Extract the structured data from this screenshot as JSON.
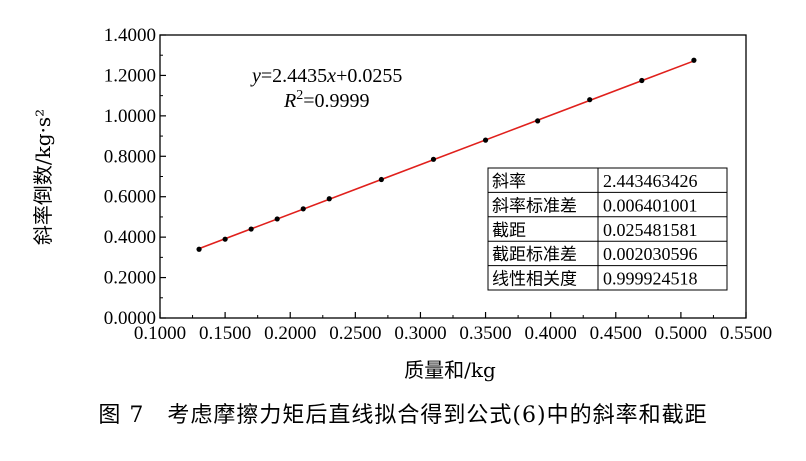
{
  "caption": "图 7　考虑摩擦力矩后直线拟合得到公式(6)中的斜率和截距",
  "chart_data": {
    "type": "scatter",
    "xlabel": "质量和/kg",
    "ylabel": "斜率倒数/kg·s²",
    "xlim": [
      0.1,
      0.55
    ],
    "ylim": [
      0.0,
      1.4
    ],
    "x_ticks": [
      "0.1000",
      "0.1500",
      "0.2000",
      "0.2500",
      "0.3000",
      "0.3500",
      "0.4000",
      "0.4500",
      "0.5000",
      "0.5500"
    ],
    "y_ticks": [
      "0.0000",
      "0.2000",
      "0.4000",
      "0.6000",
      "0.8000",
      "1.0000",
      "1.2000",
      "1.4000"
    ],
    "x": [
      0.13,
      0.15,
      0.17,
      0.19,
      0.21,
      0.23,
      0.27,
      0.31,
      0.35,
      0.39,
      0.43,
      0.47,
      0.51
    ],
    "y": [
      0.34,
      0.39,
      0.44,
      0.49,
      0.54,
      0.59,
      0.685,
      0.785,
      0.88,
      0.975,
      1.08,
      1.175,
      1.275
    ],
    "fit": {
      "slope": 2.4435,
      "intercept": 0.0255,
      "x_range": [
        0.13,
        0.51
      ],
      "color": "#e0201c"
    },
    "equation": {
      "y_var": "y",
      "eq_rest": "=2.4435",
      "x_var": "x",
      "eq_tail": "+0.0255",
      "r_var": "R",
      "r_exp": "2",
      "r_value": "=0.9999"
    },
    "stats_table": [
      [
        "斜率",
        "2.443463426"
      ],
      [
        "斜率标准差",
        "0.006401001"
      ],
      [
        "截距",
        "0.025481581"
      ],
      [
        "截距标准差",
        "0.002030596"
      ],
      [
        "线性相关度",
        "0.999924518"
      ]
    ],
    "grid": false,
    "point_color": "#000000"
  }
}
